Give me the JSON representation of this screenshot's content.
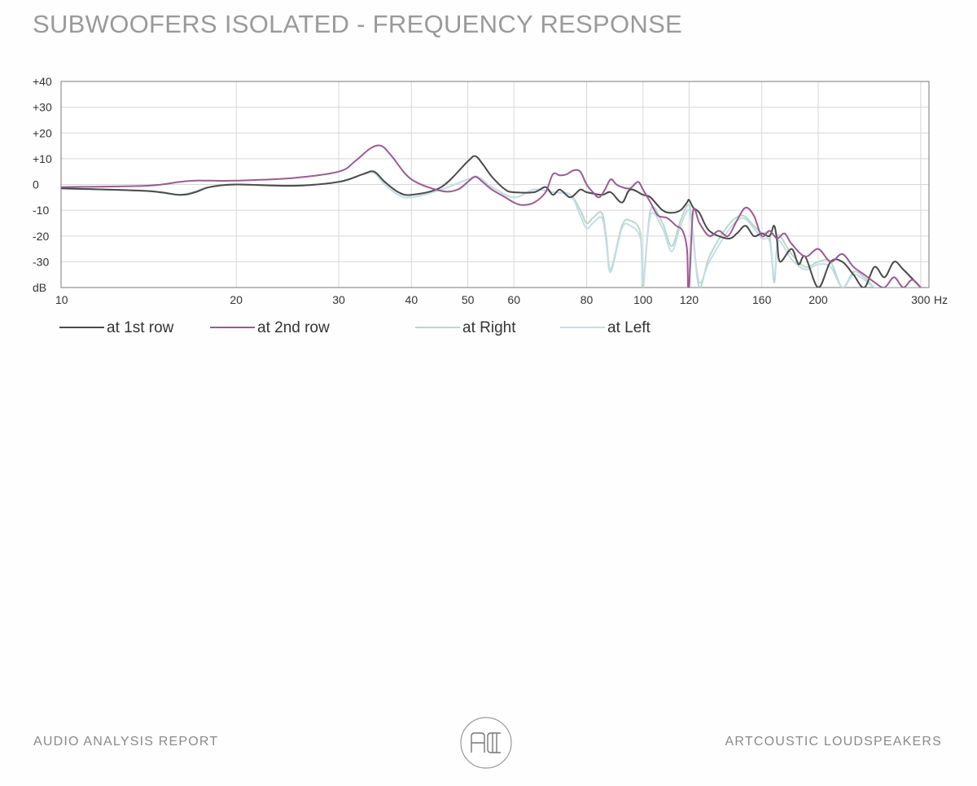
{
  "header": {
    "title": "SUBWOOFERS ISOLATED - FREQUENCY RESPONSE"
  },
  "footer": {
    "left": "AUDIO ANALYSIS REPORT",
    "right": "ARTCOUSTIC LOUDSPEAKERS",
    "logo": "AC-logo"
  },
  "chart_data": {
    "type": "line",
    "title": "",
    "xscale": "log",
    "xlim": [
      10,
      310
    ],
    "ylim": [
      -40,
      40
    ],
    "x_unit": "Hz",
    "y_unit": "dB",
    "x_ticks": [
      10,
      20,
      30,
      40,
      50,
      60,
      80,
      100,
      120,
      160,
      200,
      300
    ],
    "x_tick_labels": [
      "10",
      "20",
      "30",
      "40",
      "50",
      "60",
      "80",
      "100",
      "120",
      "160",
      "200",
      "300"
    ],
    "y_ticks": [
      40,
      30,
      20,
      10,
      0,
      -10,
      -20,
      -30
    ],
    "y_tick_labels": [
      "+40",
      "+30",
      "+20",
      "+10",
      "0",
      "-10",
      "-20",
      "-30"
    ],
    "grid": true,
    "legend_position": "bottom-left",
    "series": [
      {
        "name": "at  Right",
        "color": "#b9d8c6",
        "x": [
          10,
          14,
          16,
          18,
          20,
          25,
          30,
          33,
          34.5,
          36,
          38,
          40,
          45,
          50,
          52,
          55,
          60,
          65,
          70,
          75,
          78,
          80,
          82,
          85,
          86.5,
          88,
          92,
          95,
          99,
          100,
          103,
          108,
          112,
          116,
          120,
          122,
          125,
          130,
          140,
          148,
          155,
          160,
          165,
          168,
          170,
          172,
          180,
          190,
          200,
          210,
          220,
          230,
          240,
          250,
          260,
          270,
          280,
          300
        ],
        "y": [
          -1.5,
          -2.5,
          -4,
          -1,
          0,
          -0.5,
          1,
          4,
          4.5,
          0,
          -4,
          -5,
          -2,
          2,
          3,
          -1,
          -5,
          -2,
          -3,
          -4,
          -10,
          -15,
          -13,
          -11,
          -21,
          -33,
          -16,
          -14,
          -19,
          -40,
          -10,
          -15,
          -24,
          -14,
          -8,
          -20,
          -40,
          -28,
          -16,
          -12,
          -16,
          -19,
          -20,
          -38,
          -22,
          -20,
          -27,
          -32,
          -30,
          -30,
          -40,
          -34,
          -36,
          -40,
          -40,
          -40,
          -40,
          -40
        ]
      },
      {
        "name": "at  Left",
        "color": "#c5dde6",
        "x": [
          10,
          14,
          16,
          18,
          20,
          25,
          30,
          33,
          34.5,
          36,
          38,
          40,
          45,
          50,
          52,
          55,
          60,
          65,
          70,
          75,
          78,
          80,
          82,
          85,
          86.5,
          88,
          92,
          95,
          99,
          100,
          103,
          108,
          112,
          116,
          120,
          122,
          125,
          130,
          140,
          148,
          155,
          160,
          165,
          168,
          170,
          172,
          180,
          190,
          200,
          210,
          220,
          230,
          240,
          250,
          260,
          270,
          280,
          300
        ],
        "y": [
          -1.5,
          -2.5,
          -4,
          -1,
          0,
          -0.5,
          1,
          4,
          4.5,
          0,
          -4,
          -5,
          -2,
          2,
          3,
          -1,
          -5,
          -2,
          -3,
          -4,
          -12,
          -17,
          -15,
          -13,
          -23,
          -34,
          -17,
          -16,
          -21,
          -38,
          -12,
          -17,
          -26,
          -16,
          -10,
          -22,
          -38,
          -30,
          -18,
          -13,
          -17,
          -21,
          -22,
          -36,
          -24,
          -22,
          -29,
          -33,
          -31,
          -32,
          -40,
          -35,
          -37,
          -40,
          -40,
          -40,
          -40,
          -40
        ]
      },
      {
        "name": "at 1st row",
        "color": "#4a4a4a",
        "x": [
          10,
          14,
          16,
          17,
          18,
          20,
          25,
          30,
          33,
          34.5,
          36,
          38,
          40,
          45,
          50,
          51.5,
          53,
          55,
          58,
          60,
          65,
          68,
          70,
          72,
          75,
          78,
          80,
          85,
          88,
          92,
          95,
          100,
          103,
          108,
          112,
          116,
          119,
          120,
          122,
          125,
          130,
          140,
          145,
          150,
          155,
          160,
          165,
          168,
          170,
          172,
          180,
          185,
          190,
          200,
          210,
          220,
          230,
          240,
          250,
          260,
          270,
          280,
          300
        ],
        "y": [
          -1.5,
          -2.5,
          -4,
          -3,
          -1,
          0,
          -0.5,
          1,
          4,
          5,
          1,
          -3,
          -4,
          -1,
          9,
          11,
          8,
          3,
          -2,
          -3,
          -3,
          -1,
          -4,
          -2,
          -5,
          -2,
          -3,
          -4,
          -3,
          -7,
          -2,
          -4,
          -5,
          -10,
          -11,
          -10,
          -7,
          -6,
          -9,
          -11,
          -18,
          -21,
          -19,
          -16,
          -20,
          -19,
          -20,
          -16,
          -22,
          -30,
          -25,
          -31,
          -28,
          -40,
          -30,
          -30,
          -35,
          -40,
          -32,
          -36,
          -30,
          -33,
          -40
        ]
      },
      {
        "name": "at 2nd row",
        "color": "#9a5c92",
        "x": [
          10,
          14,
          16,
          17,
          18,
          20,
          25,
          30,
          32,
          34,
          35.5,
          37,
          40,
          45,
          48,
          50,
          51.5,
          53,
          55,
          58,
          60,
          62,
          65,
          68,
          70,
          72,
          74,
          76,
          78,
          80,
          82,
          84,
          86,
          88,
          90,
          92,
          95,
          98,
          100,
          103,
          106,
          110,
          114,
          117,
          119,
          119.5,
          120,
          120.5,
          122,
          125,
          130,
          135,
          140,
          145,
          150,
          155,
          160,
          165,
          170,
          175,
          180,
          190,
          200,
          210,
          220,
          230,
          240,
          250,
          260,
          270,
          280,
          290,
          300
        ],
        "y": [
          -1,
          -0.5,
          1,
          1.5,
          1.5,
          1.5,
          2.5,
          5,
          9,
          14,
          15,
          11,
          2,
          -2.5,
          -2,
          1,
          3,
          1,
          -2,
          -5,
          -7,
          -8,
          -7,
          -3,
          4,
          3.5,
          4,
          5.5,
          5,
          0,
          -3,
          -5,
          -2,
          2,
          0,
          -1,
          -1.5,
          1,
          -2,
          -7,
          -12,
          -13,
          -16,
          -18,
          -25,
          -40,
          -40,
          -32,
          -10,
          -15,
          -20,
          -18,
          -20,
          -14,
          -9,
          -12,
          -20,
          -18,
          -21,
          -19,
          -23,
          -28,
          -25,
          -30,
          -27,
          -32,
          -35,
          -38,
          -40,
          -36,
          -40,
          -37,
          -40
        ]
      }
    ]
  }
}
